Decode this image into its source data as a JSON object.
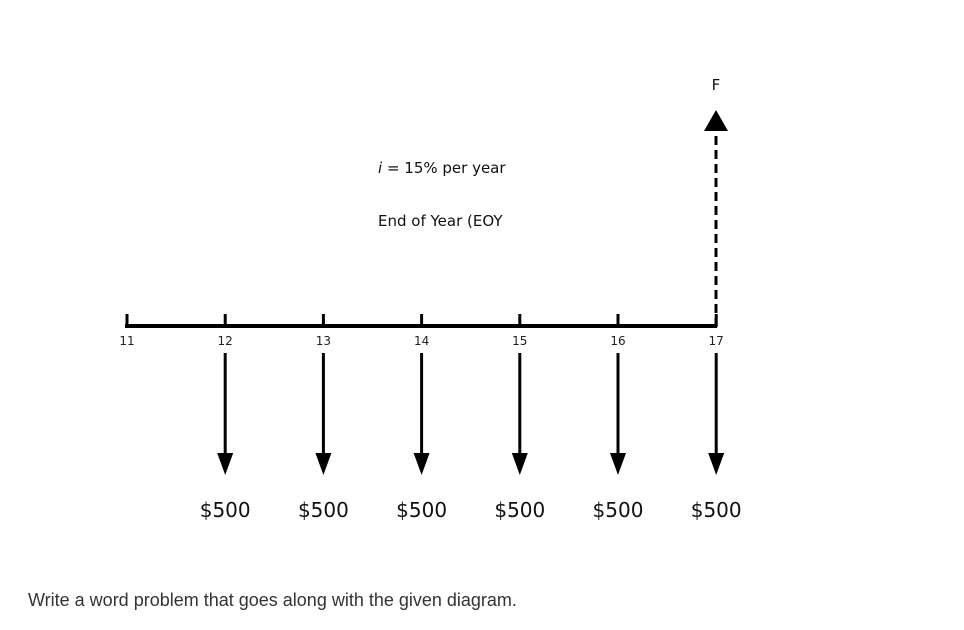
{
  "diagram": {
    "rate_prefix": "i",
    "rate_text": " = 15% per year",
    "timing_text": "End of Year (EOY",
    "future_label": "F",
    "periods": [
      "11",
      "12",
      "13",
      "14",
      "15",
      "16",
      "17"
    ],
    "payments": [
      {
        "period": "12",
        "amount": "$500"
      },
      {
        "period": "13",
        "amount": "$500"
      },
      {
        "period": "14",
        "amount": "$500"
      },
      {
        "period": "15",
        "amount": "$500"
      },
      {
        "period": "16",
        "amount": "$500"
      },
      {
        "period": "17",
        "amount": "$500"
      }
    ]
  },
  "question": {
    "text": "Write a word problem that goes along with the given diagram."
  }
}
